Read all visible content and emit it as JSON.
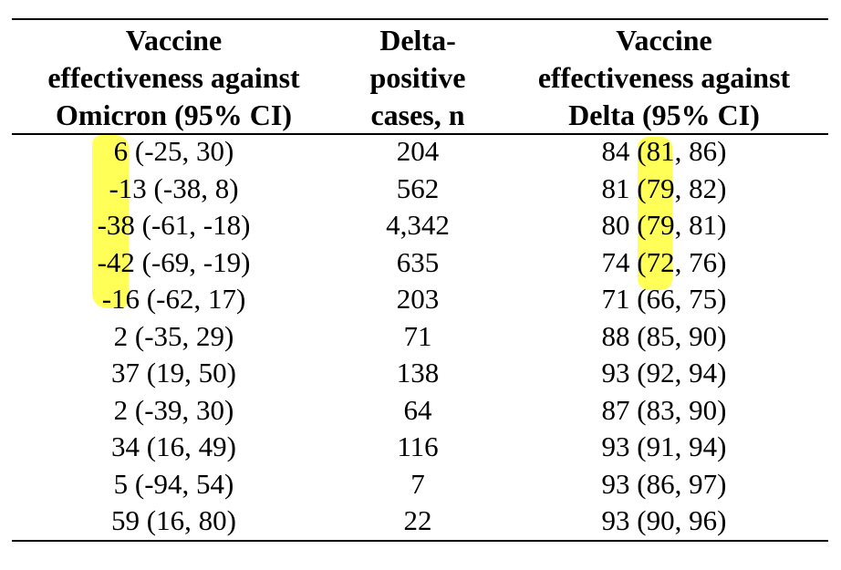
{
  "headers": {
    "col1": [
      "Vaccine",
      "effectiveness against",
      "Omicron (95% CI)"
    ],
    "col2": [
      "Delta-",
      "positive",
      "cases, n"
    ],
    "col3": [
      "Vaccine",
      "effectiveness against",
      "Delta (95% CI)"
    ]
  },
  "rows": [
    {
      "omicron": "6 (-25, 30)",
      "cases": "204",
      "delta": "84 (81, 86)"
    },
    {
      "omicron": "-13 (-38, 8)",
      "cases": "562",
      "delta": "81 (79, 82)"
    },
    {
      "omicron": "-38 (-61, -18)",
      "cases": "4,342",
      "delta": "80 (79, 81)"
    },
    {
      "omicron": "-42 (-69, -19)",
      "cases": "635",
      "delta": "74 (72, 76)"
    },
    {
      "omicron": "-16 (-62, 17)",
      "cases": "203",
      "delta": "71 (66, 75)"
    },
    {
      "omicron": "2 (-35, 29)",
      "cases": "71",
      "delta": "88 (85, 90)"
    },
    {
      "omicron": "37 (19, 50)",
      "cases": "138",
      "delta": "93 (92, 94)"
    },
    {
      "omicron": "2 (-39, 30)",
      "cases": "64",
      "delta": "87 (83, 90)"
    },
    {
      "omicron": "34 (16, 49)",
      "cases": "116",
      "delta": "93 (91, 94)"
    },
    {
      "omicron": "5 (-94, 54)",
      "cases": "7",
      "delta": "93 (86, 97)"
    },
    {
      "omicron": "59 (16, 80)",
      "cases": "22",
      "delta": "93 (90, 96)"
    }
  ],
  "highlight_color": "#ffff3a"
}
